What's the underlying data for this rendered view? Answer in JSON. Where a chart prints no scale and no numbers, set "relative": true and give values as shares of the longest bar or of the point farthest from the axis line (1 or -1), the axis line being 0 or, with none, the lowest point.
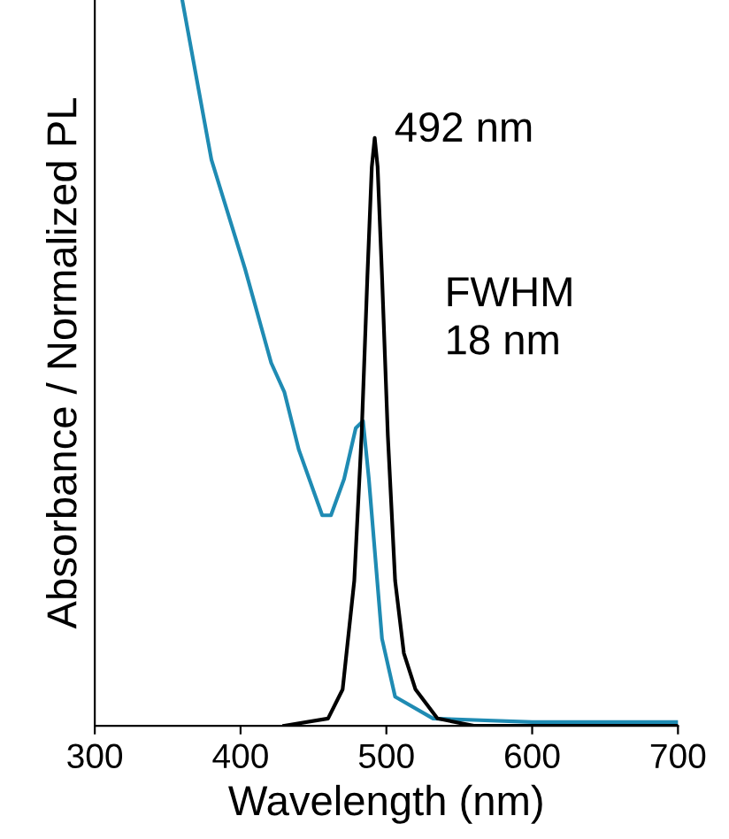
{
  "chart_data": {
    "type": "line",
    "relative": true,
    "xlabel": "Wavelength (nm)",
    "ylabel": "Absorbance / Normalized PL",
    "xlim": [
      300,
      700
    ],
    "xticks": [
      300,
      400,
      500,
      600,
      700
    ],
    "line_style": "solid",
    "marker": "none",
    "grid": false,
    "legend": false,
    "series": [
      {
        "color": "#1f8bb3",
        "x": [
          360,
          380,
          403,
          421,
          430,
          440,
          456,
          462,
          471,
          479,
          484,
          488,
          497,
          506,
          532,
          600,
          700
        ],
        "values": [
          1.0,
          0.78,
          0.63,
          0.5,
          0.46,
          0.38,
          0.29,
          0.29,
          0.34,
          0.41,
          0.42,
          0.34,
          0.12,
          0.04,
          0.01,
          0.005,
          0.005
        ]
      },
      {
        "color": "#000000",
        "x": [
          430,
          460,
          470,
          478,
          483,
          487,
          490,
          492,
          494,
          497,
          501,
          506,
          512,
          520,
          535,
          560,
          700
        ],
        "values": [
          0,
          0.01,
          0.05,
          0.2,
          0.4,
          0.62,
          0.77,
          0.81,
          0.77,
          0.62,
          0.4,
          0.2,
          0.1,
          0.05,
          0.01,
          0,
          0
        ]
      }
    ],
    "annotations": [
      {
        "text": "492 nm",
        "x": 492,
        "y": 0.81
      },
      "FWHM\n18 nm"
    ]
  }
}
